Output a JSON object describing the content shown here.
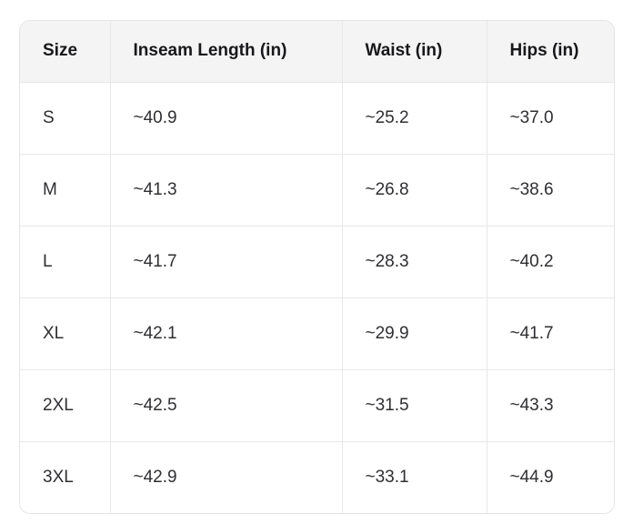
{
  "size_chart": {
    "headers": {
      "size": "Size",
      "inseam": "Inseam Length (in)",
      "waist": "Waist (in)",
      "hips": "Hips (in)"
    },
    "rows": [
      {
        "size": "S",
        "values": [
          "~40.9",
          "~25.2",
          "~37.0"
        ]
      },
      {
        "size": "M",
        "values": [
          "~41.3",
          "~26.8",
          "~38.6"
        ]
      },
      {
        "size": "L",
        "values": [
          "~41.7",
          "~28.3",
          "~40.2"
        ]
      },
      {
        "size": "XL",
        "values": [
          "~42.1",
          "~29.9",
          "~41.7"
        ]
      },
      {
        "size": "2XL",
        "values": [
          "~42.5",
          "~31.5",
          "~43.3"
        ]
      },
      {
        "size": "3XL",
        "values": [
          "~42.9",
          "~33.1",
          "~44.9"
        ]
      }
    ]
  },
  "chart_data": {
    "type": "table",
    "title": "",
    "columns": [
      "Size",
      "Inseam Length (in)",
      "Waist (in)",
      "Hips (in)"
    ],
    "rows": [
      [
        "S",
        "~40.9",
        "~25.2",
        "~37.0"
      ],
      [
        "M",
        "~41.3",
        "~26.8",
        "~38.6"
      ],
      [
        "L",
        "~41.7",
        "~28.3",
        "~40.2"
      ],
      [
        "XL",
        "~42.1",
        "~29.9",
        "~41.7"
      ],
      [
        "2XL",
        "~42.5",
        "~31.5",
        "~43.3"
      ],
      [
        "3XL",
        "~42.9",
        "~33.1",
        "~44.9"
      ]
    ],
    "colors": {
      "header_background": "#f4f4f5",
      "grid_line": "#e8e8e8",
      "outer_border": "#e4e4e7",
      "header_text": "#18181b",
      "cell_text": "#2f2f33"
    }
  }
}
